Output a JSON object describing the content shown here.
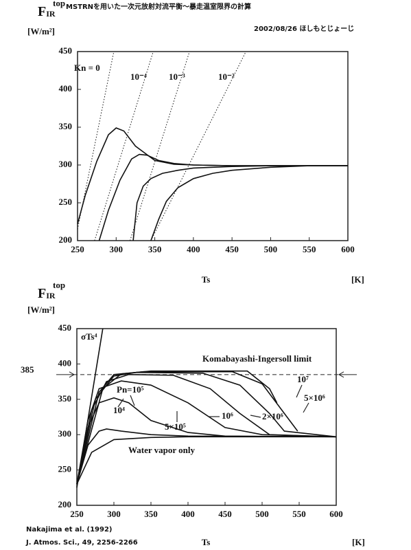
{
  "chart_data": [
    {
      "type": "line",
      "title": "MSTRNを用いた一次元放射対流平衡〜暴走温室限界の計算",
      "subtitle": "2002/08/26 ほしもとじょーじ",
      "y_label": [
        "F",
        "IR",
        "top"
      ],
      "y_unit": "[W/m²]",
      "x_label": "Ts",
      "x_unit": "[K]",
      "xlim": [
        250,
        600
      ],
      "ylim": [
        200,
        450
      ],
      "xticks": [
        250,
        300,
        350,
        400,
        450,
        500,
        550,
        600
      ],
      "yticks": [
        200,
        250,
        300,
        350,
        400,
        450
      ],
      "color": "#111111",
      "series": [
        {
          "style": "solid",
          "x": [
            250,
            260,
            275,
            290,
            300,
            310,
            325,
            350,
            375,
            400,
            450,
            600
          ],
          "values": [
            222,
            260,
            305,
            340,
            349,
            345,
            325,
            306,
            301,
            300,
            299,
            299
          ]
        },
        {
          "style": "solid",
          "x": [
            278,
            290,
            305,
            320,
            330,
            340,
            355,
            375,
            400,
            450,
            600
          ],
          "values": [
            200,
            240,
            280,
            308,
            314,
            313,
            306,
            302,
            300,
            299,
            299
          ]
        },
        {
          "style": "solid",
          "x": [
            322,
            327,
            335,
            345,
            360,
            380,
            400,
            450,
            500,
            600
          ],
          "values": [
            200,
            250,
            272,
            282,
            289,
            293,
            296,
            298,
            299,
            299
          ]
        },
        {
          "style": "solid",
          "x": [
            345,
            355,
            365,
            380,
            400,
            425,
            450,
            500,
            550,
            600
          ],
          "values": [
            200,
            228,
            252,
            270,
            282,
            289,
            293,
            297,
            299,
            299
          ]
        },
        {
          "style": "dotted",
          "x": [
            250,
            297
          ],
          "values": [
            215,
            450
          ]
        },
        {
          "style": "dotted",
          "x": [
            272,
            348
          ],
          "values": [
            200,
            450
          ]
        },
        {
          "style": "dotted",
          "x": [
            318,
            395
          ],
          "values": [
            200,
            450
          ]
        },
        {
          "style": "dotted",
          "x": [
            345,
            468
          ],
          "values": [
            200,
            450
          ]
        }
      ],
      "annotations": [
        "Kn = 0",
        "10⁻⁴",
        "10⁻³",
        "10⁻²"
      ]
    },
    {
      "type": "line",
      "y_label": [
        "F",
        "IR",
        "top"
      ],
      "y_unit": "[W/m²]",
      "x_label": "Ts",
      "x_unit": "[K]",
      "xlim": [
        250,
        600
      ],
      "ylim": [
        200,
        450
      ],
      "xticks": [
        250,
        300,
        350,
        400,
        450,
        500,
        550,
        600
      ],
      "yticks": [
        200,
        250,
        300,
        350,
        400,
        450
      ],
      "hline": 385,
      "color": "#111111",
      "series": [
        {
          "style": "solid",
          "x": [
            250,
            285
          ],
          "values": [
            225,
            450
          ]
        },
        {
          "style": "solid",
          "x": [
            250,
            270,
            300,
            350,
            400,
            600
          ],
          "values": [
            230,
            275,
            293,
            296,
            297,
            297
          ]
        },
        {
          "style": "solid",
          "x": [
            250,
            265,
            280,
            290,
            310,
            350,
            400,
            600
          ],
          "values": [
            230,
            285,
            305,
            308,
            305,
            300,
            298,
            297
          ]
        },
        {
          "style": "solid",
          "x": [
            250,
            265,
            280,
            300,
            320,
            350,
            400,
            450,
            600
          ],
          "values": [
            230,
            310,
            345,
            352,
            345,
            320,
            303,
            298,
            297
          ]
        },
        {
          "style": "solid",
          "x": [
            250,
            265,
            280,
            310,
            350,
            400,
            450,
            500,
            600
          ],
          "values": [
            230,
            320,
            365,
            376,
            370,
            345,
            310,
            300,
            297
          ]
        },
        {
          "style": "solid",
          "x": [
            250,
            270,
            290,
            320,
            380,
            430,
            470,
            510,
            600
          ],
          "values": [
            230,
            335,
            375,
            385,
            384,
            365,
            330,
            300,
            297
          ]
        },
        {
          "style": "solid",
          "x": [
            250,
            275,
            300,
            330,
            420,
            470,
            510,
            530,
            600
          ],
          "values": [
            230,
            350,
            383,
            388,
            387,
            370,
            330,
            305,
            297
          ]
        },
        {
          "style": "solid",
          "x": [
            250,
            280,
            300,
            340,
            460,
            500,
            530,
            548
          ],
          "values": [
            230,
            360,
            385,
            389,
            389,
            372,
            330,
            305
          ]
        },
        {
          "style": "solid",
          "x": [
            250,
            285,
            310,
            350,
            480,
            510,
            520
          ],
          "values": [
            230,
            365,
            386,
            390,
            390,
            365,
            345
          ]
        }
      ],
      "annotations": [
        "σTs⁴",
        "Komabayashi-Ingersoll limit",
        "10⁷",
        "5×10⁶",
        "10⁶",
        "2×10⁶",
        "5×10⁵",
        "Pn=10⁵",
        "10⁴",
        "Water vapor only",
        "Nakajima et al. (1992)",
        "J. Atmos. Sci., 49, 2256-2266"
      ]
    }
  ]
}
